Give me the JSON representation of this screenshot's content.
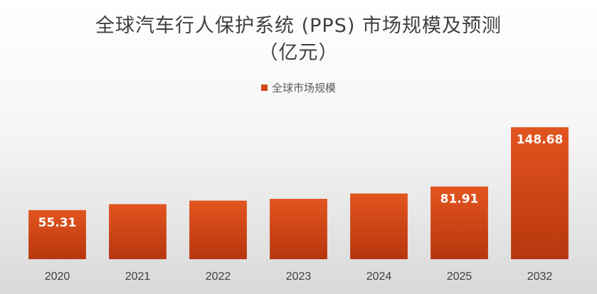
{
  "chart": {
    "title_line1": "全球汽车行人保护系统 (PPS) 市场规模及预测",
    "title_line2": "（亿元）",
    "legend_label": "全球市场规模"
  },
  "colors": {
    "bar_top": "#e2551f",
    "bar_bottom": "#b8360e"
  },
  "chart_data": {
    "type": "bar",
    "title": "全球汽车行人保护系统 (PPS) 市场规模及预测（亿元）",
    "categories": [
      "2020",
      "2021",
      "2022",
      "2023",
      "2024",
      "2025",
      "2032"
    ],
    "series": [
      {
        "name": "全球市场规模",
        "values": [
          55.31,
          62.0,
          66.0,
          68.0,
          74.0,
          81.91,
          148.68
        ]
      }
    ],
    "data_labels": [
      "55.31",
      null,
      null,
      null,
      null,
      "81.91",
      "148.68"
    ],
    "ylim": [
      0,
      200
    ],
    "grid": false,
    "legend_position": "top",
    "xlabel": "",
    "ylabel": ""
  }
}
